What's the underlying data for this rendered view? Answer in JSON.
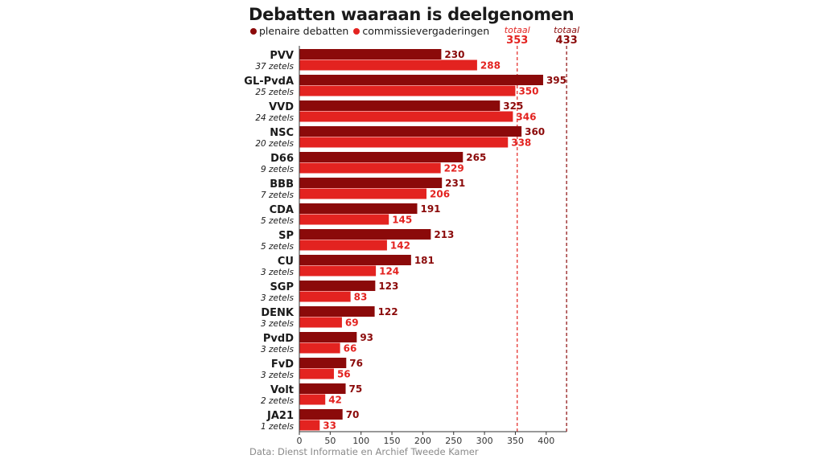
{
  "chart_data": {
    "type": "bar",
    "title": "Debatten waaraan is deelgenomen",
    "categories": [
      "PVV",
      "GL-PvdA",
      "VVD",
      "NSC",
      "D66",
      "BBB",
      "CDA",
      "SP",
      "CU",
      "SGP",
      "DENK",
      "PvdD",
      "FvD",
      "Volt",
      "JA21"
    ],
    "sublabels": [
      "37 zetels",
      "25 zetels",
      "24 zetels",
      "20 zetels",
      "9 zetels",
      "7 zetels",
      "5 zetels",
      "5 zetels",
      "3 zetels",
      "3 zetels",
      "3 zetels",
      "3 zetels",
      "3 zetels",
      "2 zetels",
      "1 zetels"
    ],
    "series": [
      {
        "name": "plenaire debatten",
        "color": "#8b0a0a",
        "values": [
          230,
          395,
          325,
          360,
          265,
          231,
          191,
          213,
          181,
          123,
          122,
          93,
          76,
          75,
          70
        ]
      },
      {
        "name": "commissievergaderingen",
        "color": "#e32320",
        "values": [
          288,
          350,
          346,
          338,
          229,
          206,
          145,
          142,
          124,
          83,
          69,
          66,
          56,
          42,
          33
        ]
      }
    ],
    "xlim": [
      0,
      433
    ],
    "xticks": [
      0,
      50,
      100,
      150,
      200,
      250,
      300,
      350,
      400
    ],
    "reference_lines": [
      {
        "label": "totaal",
        "value": 353,
        "value_label": "353",
        "color": "#e32320"
      },
      {
        "label": "totaal",
        "value": 433,
        "value_label": "433",
        "color": "#8b0a0a"
      }
    ],
    "grid": false,
    "legend": "top-left",
    "source": "Data: Dienst Informatie en Archief Tweede Kamer"
  }
}
